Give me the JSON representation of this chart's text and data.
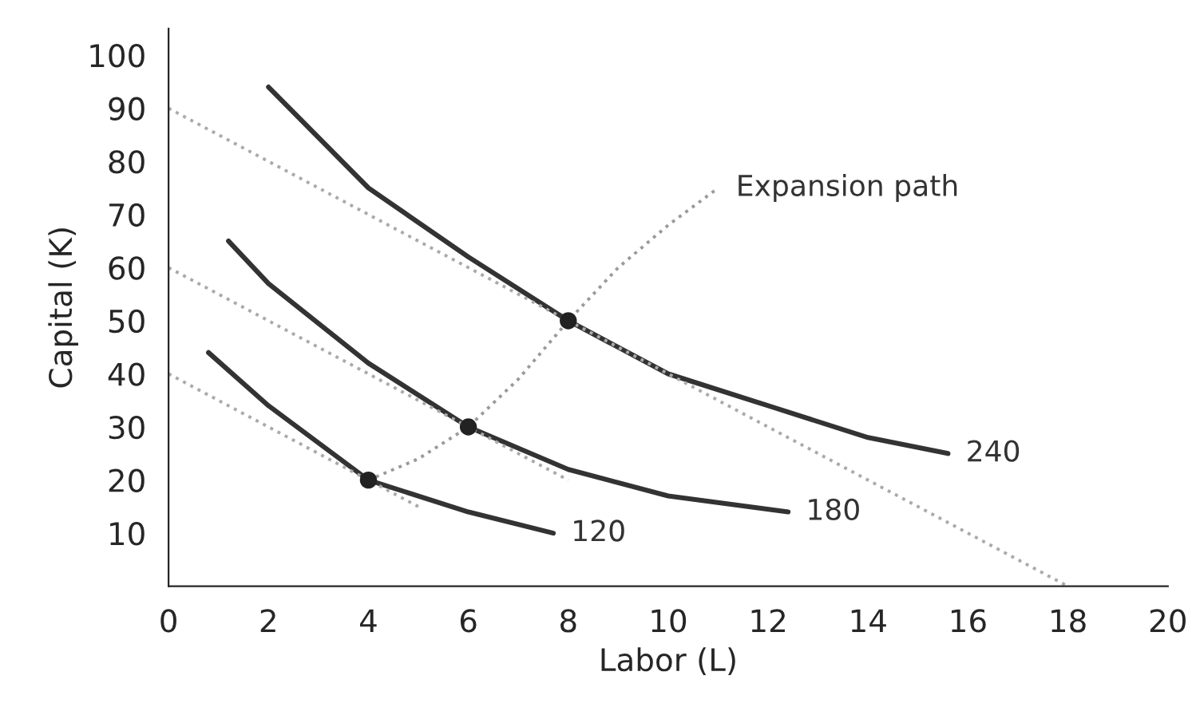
{
  "chart_data": {
    "type": "line",
    "xlabel": "Labor (L)",
    "ylabel": "Capital (K)",
    "xlim": [
      0,
      20
    ],
    "ylim": [
      0,
      105
    ],
    "xticks": [
      0,
      2,
      4,
      6,
      8,
      10,
      12,
      14,
      16,
      18,
      20
    ],
    "yticks": [
      10,
      20,
      30,
      40,
      50,
      60,
      70,
      80,
      90,
      100
    ],
    "grid": false,
    "legend": false,
    "series": [
      {
        "name": "240",
        "color": "#333333",
        "line_style": "solid",
        "x": [
          2,
          4,
          6,
          8,
          10,
          12,
          14,
          15.6
        ],
        "values": [
          94,
          75,
          62,
          50,
          40,
          34,
          28,
          25
        ]
      },
      {
        "name": "180",
        "color": "#333333",
        "line_style": "solid",
        "x": [
          1.2,
          2,
          4,
          6,
          8,
          10,
          12.4
        ],
        "values": [
          65,
          57,
          42,
          30,
          22,
          17,
          14
        ]
      },
      {
        "name": "120",
        "color": "#333333",
        "line_style": "solid",
        "x": [
          0.8,
          2,
          4,
          6,
          7.7
        ],
        "values": [
          44,
          34,
          20,
          14,
          10
        ]
      },
      {
        "name": "Expansion path",
        "color": "#9a9a9a",
        "line_style": "dotted",
        "x": [
          4,
          5,
          6,
          7,
          8,
          9,
          10,
          11
        ],
        "values": [
          20,
          24,
          30,
          39,
          50,
          60,
          68,
          75
        ]
      },
      {
        "color": "#aaaaaa",
        "line_style": "dotted",
        "x": [
          0,
          18
        ],
        "values": [
          90,
          0
        ]
      },
      {
        "color": "#aaaaaa",
        "line_style": "dotted",
        "x": [
          0,
          8
        ],
        "values": [
          60,
          20
        ]
      },
      {
        "color": "#aaaaaa",
        "line_style": "dotted",
        "x": [
          0,
          5
        ],
        "values": [
          40,
          15
        ]
      },
      {
        "type": "scatter",
        "color": "#222222",
        "marker": "circle",
        "x": [
          4,
          6,
          8
        ],
        "values": [
          20,
          30,
          50
        ]
      }
    ]
  }
}
